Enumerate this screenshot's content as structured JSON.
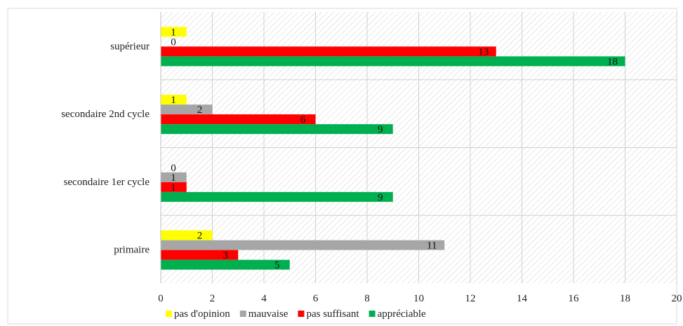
{
  "chart_data": {
    "type": "bar",
    "orientation": "horizontal",
    "categories": [
      "supérieur",
      "secondaire 2nd cycle",
      "secondaire 1er cycle",
      "primaire"
    ],
    "series": [
      {
        "name": "pas d'opinion",
        "color": "#ffff00",
        "values": [
          1,
          1,
          0,
          2
        ]
      },
      {
        "name": "mauvaise",
        "color": "#a6a6a6",
        "values": [
          0,
          2,
          1,
          11
        ]
      },
      {
        "name": "pas suffisant",
        "color": "#ff0000",
        "values": [
          13,
          6,
          1,
          3
        ]
      },
      {
        "name": "appréciable",
        "color": "#00b050",
        "values": [
          18,
          9,
          9,
          5
        ]
      }
    ],
    "data_labels": [
      [
        "1",
        "0",
        "13",
        "18"
      ],
      [
        "1",
        "2",
        "6",
        "9"
      ],
      [
        "0",
        "1",
        "1",
        "9"
      ],
      [
        "2",
        "11",
        "3",
        "5"
      ]
    ],
    "x_ticks": [
      "0",
      "2",
      "4",
      "6",
      "8",
      "10",
      "12",
      "14",
      "16",
      "18",
      "20"
    ],
    "xlim": [
      0,
      20
    ],
    "grid": true,
    "legend_position": "bottom",
    "title": "",
    "xlabel": "",
    "ylabel": ""
  }
}
